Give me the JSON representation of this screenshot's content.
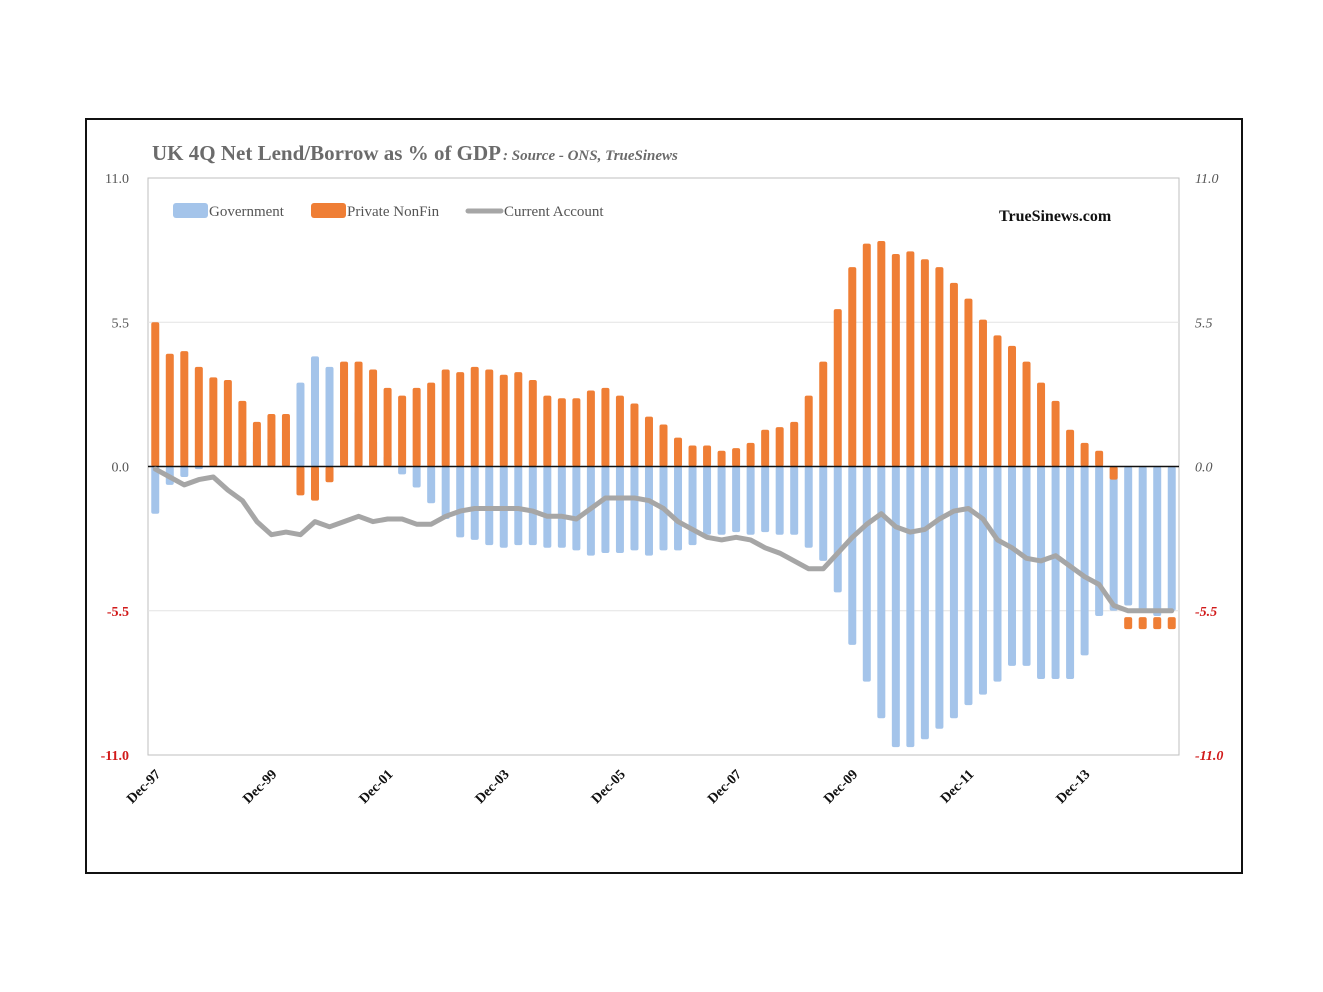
{
  "chart_data": {
    "type": "bar",
    "title": "UK 4Q Net Lend/Borrow as % of GDP",
    "subtitle": ": Source - ONS, TrueSinews",
    "brand": "TrueSinews.com",
    "ylim": [
      -11,
      11
    ],
    "y_ticks_left": [
      "11.0",
      "5.5",
      "0.0",
      "-5.5",
      "-11.0"
    ],
    "y_ticks_right": [
      "11.0",
      "5.5",
      "0.0",
      "-5.5",
      "-11.0"
    ],
    "y_tick_values": [
      11,
      5.5,
      0,
      -5.5,
      -11
    ],
    "x_tick_labels": [
      "Dec-97",
      "Dec-99",
      "Dec-01",
      "Dec-03",
      "Dec-05",
      "Dec-07",
      "Dec-09",
      "Dec-11",
      "Dec-13"
    ],
    "x_tick_every": 8,
    "grid": true,
    "legend_position": "top-left",
    "colors": {
      "Government": "#a4c4ea",
      "Private NonFin": "#ef7e35",
      "Current Account": "#a6a6a6",
      "negative_tick": "#d11a1a"
    },
    "series": [
      {
        "name": "Government",
        "kind": "bar",
        "values": [
          -1.8,
          -0.7,
          -0.4,
          -0.1,
          0.0,
          0.3,
          0.6,
          1.0,
          1.1,
          1.4,
          3.2,
          4.2,
          3.8,
          3.6,
          2.1,
          1.0,
          0.4,
          -0.3,
          -0.8,
          -1.4,
          -2.0,
          -2.7,
          -2.8,
          -3.0,
          -3.1,
          -3.0,
          -3.0,
          -3.1,
          -3.1,
          -3.2,
          -3.4,
          -3.3,
          -3.3,
          -3.2,
          -3.4,
          -3.2,
          -3.2,
          -3.0,
          -2.6,
          -2.6,
          -2.5,
          -2.6,
          -2.5,
          -2.6,
          -2.6,
          -3.1,
          -3.6,
          -4.8,
          -6.8,
          -8.2,
          -9.6,
          -10.7,
          -10.7,
          -10.4,
          -10.0,
          -9.6,
          -9.1,
          -8.7,
          -8.2,
          -7.6,
          -7.6,
          -8.1,
          -8.1,
          -8.1,
          -7.2,
          -5.7,
          -5.5,
          -5.3,
          -5.5,
          -5.7,
          -5.5
        ],
        "top_values": [
          5.5,
          4.3,
          4.4,
          3.8,
          3.4,
          3.3,
          2.5,
          1.7,
          2.0,
          2.0,
          0.0,
          0.0,
          -0.5,
          3.9,
          4.0,
          3.7,
          3.0,
          2.7,
          3.0,
          3.2,
          3.7,
          3.6,
          3.8,
          3.7,
          3.5,
          3.6,
          3.3,
          2.7,
          2.6,
          2.6,
          2.9,
          3.0,
          2.7,
          2.4,
          1.9,
          1.6,
          1.1,
          0.8,
          0.8,
          0.6,
          0.7,
          0.9,
          1.4,
          1.5,
          1.7,
          2.7,
          4.0,
          6.0,
          7.6,
          8.5,
          8.6,
          8.1,
          8.2,
          7.9,
          7.6,
          7.0,
          6.4,
          5.6,
          5.0,
          4.6,
          4.0,
          3.2,
          2.5,
          1.4,
          0.9,
          0.6,
          0.0,
          0.0,
          0.0,
          0.0,
          0.0
        ]
      },
      {
        "name": "Private NonFin",
        "kind": "bar",
        "values": [
          5.5,
          4.3,
          4.4,
          3.8,
          3.4,
          3.3,
          2.5,
          1.7,
          2.0,
          2.0,
          -1.1,
          -1.3,
          -0.6,
          4.0,
          4.0,
          3.7,
          3.0,
          2.7,
          3.0,
          3.2,
          3.7,
          3.6,
          3.8,
          3.7,
          3.5,
          3.6,
          3.3,
          2.7,
          2.6,
          2.6,
          2.9,
          3.0,
          2.7,
          2.4,
          1.9,
          1.6,
          1.1,
          0.8,
          0.8,
          0.6,
          0.7,
          0.9,
          1.4,
          1.5,
          1.7,
          2.7,
          4.0,
          6.0,
          7.6,
          8.5,
          8.6,
          8.1,
          8.2,
          7.9,
          7.6,
          7.0,
          6.4,
          5.6,
          5.0,
          4.6,
          4.0,
          3.2,
          2.5,
          1.4,
          0.9,
          0.6,
          -0.5,
          -6.2,
          -6.2,
          -6.2,
          -6.2
        ]
      },
      {
        "name": "Current Account",
        "kind": "line",
        "values": [
          -0.1,
          -0.4,
          -0.7,
          -0.5,
          -0.4,
          -0.9,
          -1.3,
          -2.1,
          -2.6,
          -2.5,
          -2.6,
          -2.1,
          -2.3,
          -2.1,
          -1.9,
          -2.1,
          -2.0,
          -2.0,
          -2.2,
          -2.2,
          -1.9,
          -1.7,
          -1.6,
          -1.6,
          -1.6,
          -1.6,
          -1.7,
          -1.9,
          -1.9,
          -2.0,
          -1.6,
          -1.2,
          -1.2,
          -1.2,
          -1.3,
          -1.6,
          -2.1,
          -2.4,
          -2.7,
          -2.8,
          -2.7,
          -2.8,
          -3.1,
          -3.3,
          -3.6,
          -3.9,
          -3.9,
          -3.3,
          -2.7,
          -2.2,
          -1.8,
          -2.3,
          -2.5,
          -2.4,
          -2.0,
          -1.7,
          -1.6,
          -2.0,
          -2.8,
          -3.1,
          -3.5,
          -3.6,
          -3.4,
          -3.8,
          -4.2,
          -4.5,
          -5.3,
          -5.5,
          -5.5,
          -5.5,
          -5.5
        ]
      }
    ]
  }
}
